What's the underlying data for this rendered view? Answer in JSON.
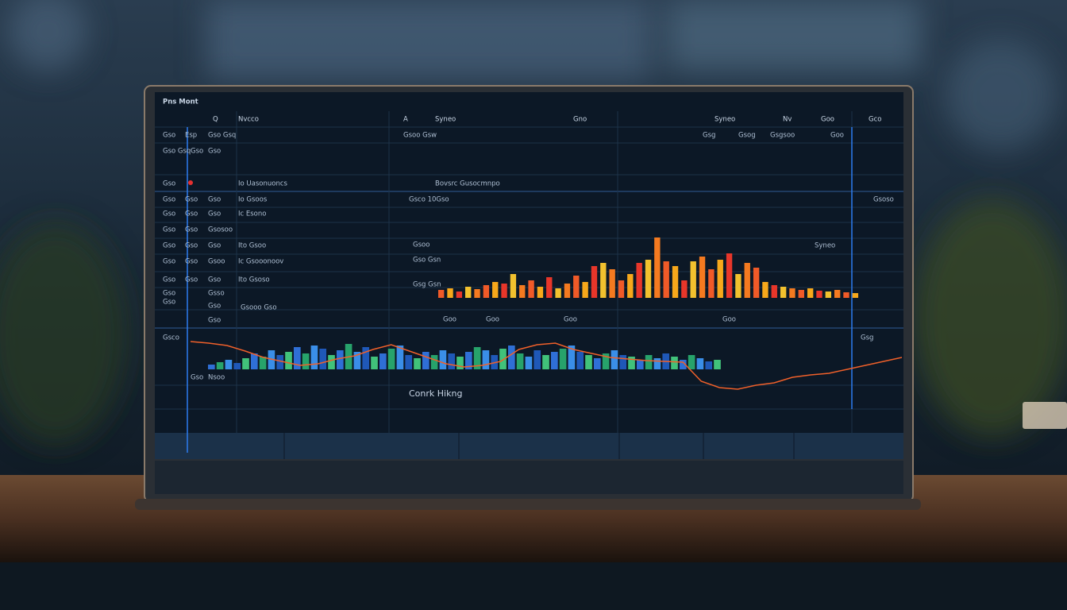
{
  "title": "Pns Mont",
  "header": [
    "Q",
    "Nvcco",
    "A",
    "Syneo",
    "Gno",
    "Syneo",
    "Nv",
    "Goo",
    "Gco"
  ],
  "left_labels": [
    "Gso",
    "Esp",
    "Gso Gsq",
    "Gso Gsq",
    "Gso",
    "Gso",
    "Io Uasonuoncs",
    "Gso",
    "Gso",
    "Gso",
    "Io Gsoos",
    "Gso",
    "Gso",
    "Gso",
    "Ic Esono",
    "Gso",
    "Gso",
    "Gsosoo",
    "Gso",
    "Gso",
    "Ito Gsoo",
    "Gso",
    "Gso",
    "Gso",
    "Ic Gsooonoov",
    "Gsoo",
    "Gso",
    "Ito Gsoso",
    "Gso",
    "Gso",
    "Gso",
    "Gsooo Gso",
    "Gso",
    "Gsso",
    "Gso",
    "Gso",
    "Gso",
    "Gsco",
    "Gso",
    "Nsoo"
  ],
  "middle_labels": [
    "Gsoo Gsw",
    "Gsg",
    "Gsog",
    "Gsgsoo",
    "Goo",
    "Bovsrc Gusocmnpo",
    "Gsco 10Gso",
    "Gsoso",
    "Gsoo",
    "Syneo",
    "Gso Gsn",
    "Gsg Gsn",
    "Goo",
    "Goo",
    "Goo",
    "Goo",
    "Gsg",
    "Conrk Hikng"
  ],
  "bar_colors": [
    "#f05a28",
    "#f7a81b",
    "#e8362a",
    "#f2c12e",
    "#f47a20"
  ],
  "bars": [
    10,
    12,
    8,
    14,
    11,
    16,
    20,
    18,
    30,
    16,
    22,
    14,
    26,
    12,
    18,
    28,
    20,
    40,
    44,
    36,
    22,
    30,
    44,
    48,
    76,
    46,
    40,
    22,
    46,
    52,
    36,
    48,
    56,
    30,
    44,
    38,
    20,
    16,
    14,
    12,
    10,
    12,
    9,
    8,
    10,
    7,
    6
  ],
  "volume_colors": [
    "#2f6fd6",
    "#27a36b",
    "#3a8ee8",
    "#1f58b8",
    "#41c27a"
  ],
  "volume": [
    6,
    9,
    12,
    8,
    14,
    20,
    16,
    24,
    18,
    22,
    28,
    20,
    30,
    26,
    18,
    24,
    32,
    22,
    28,
    16,
    20,
    26,
    30,
    18,
    14,
    22,
    18,
    24,
    20,
    16,
    22,
    28,
    24,
    18,
    26,
    30,
    20,
    16,
    24,
    18,
    22,
    26,
    30,
    22,
    18,
    14,
    20,
    24,
    18,
    16,
    12,
    18,
    14,
    20,
    16,
    12,
    18,
    14,
    10,
    12
  ],
  "trend": [
    70,
    68,
    65,
    58,
    50,
    45,
    40,
    42,
    48,
    52,
    60,
    66,
    58,
    50,
    42,
    38,
    40,
    45,
    60,
    66,
    68,
    60,
    55,
    50,
    48,
    46,
    45,
    44,
    20,
    12,
    10,
    15,
    18,
    25,
    28,
    30,
    35,
    40,
    45,
    50
  ]
}
